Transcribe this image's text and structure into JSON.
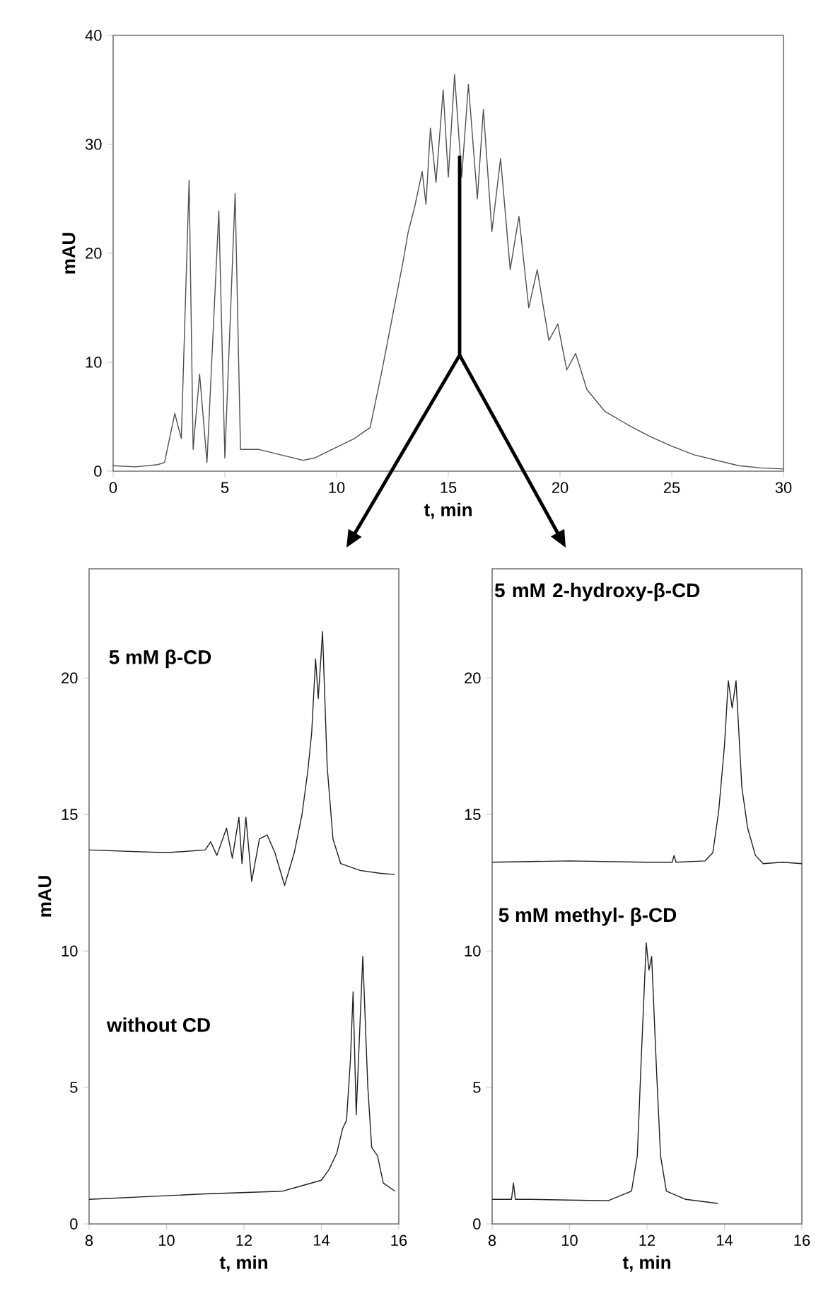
{
  "chart_data": [
    {
      "type": "line",
      "xlabel": "t, min",
      "ylabel": "mAU",
      "xlim": [
        0,
        30
      ],
      "ylim": [
        0,
        40
      ],
      "xticks": [
        0,
        5,
        10,
        15,
        20,
        25,
        30
      ],
      "yticks": [
        0,
        10,
        20,
        30,
        40
      ],
      "series": [
        {
          "color": "#505050",
          "x": [
            0,
            1,
            2,
            2.3,
            2.76,
            3.05,
            3.4,
            3.58,
            3.87,
            4.2,
            4.73,
            5.0,
            5.46,
            5.7,
            6.5,
            7.5,
            8.5,
            9.0,
            10.0,
            10.8,
            11.5,
            12.0,
            12.5,
            13.0,
            13.2,
            13.5,
            13.83,
            14.0,
            14.2,
            14.45,
            14.77,
            15.0,
            15.28,
            15.6,
            15.9,
            16.3,
            16.57,
            16.95,
            17.34,
            17.77,
            18.16,
            18.6,
            18.98,
            19.5,
            19.9,
            20.3,
            20.7,
            21.2,
            22,
            23,
            24,
            25,
            26,
            27,
            28,
            29,
            30
          ],
          "values": [
            0.5,
            0.4,
            0.6,
            0.8,
            5.3,
            3,
            26.7,
            2,
            8.9,
            0.8,
            23.9,
            1.2,
            25.5,
            2,
            2,
            1.5,
            1,
            1.2,
            2.2,
            3,
            4,
            8.9,
            14.2,
            19.5,
            21.9,
            24.3,
            27.5,
            24.5,
            31.5,
            26.5,
            35,
            27,
            36.4,
            27,
            35.5,
            25,
            33.2,
            22,
            28.7,
            18.5,
            23.4,
            15,
            18.5,
            12,
            13.5,
            9.3,
            10.8,
            7.5,
            5.5,
            4.3,
            3.2,
            2.3,
            1.5,
            1,
            0.5,
            0.3,
            0.2
          ]
        }
      ]
    },
    {
      "type": "line",
      "xlabel": "t, min",
      "ylabel": "mAU",
      "xlim": [
        8,
        16
      ],
      "ylim": [
        0,
        24
      ],
      "xticks": [
        8,
        10,
        12,
        14,
        16
      ],
      "yticks": [
        0,
        5,
        10,
        15,
        20
      ],
      "annotations": [
        "5 mM β-CD",
        "without CD"
      ],
      "series": [
        {
          "color": "#202020",
          "x": [
            8,
            9,
            10,
            11,
            11.14,
            11.3,
            11.55,
            11.7,
            11.87,
            11.95,
            12.05,
            12.2,
            12.4,
            12.6,
            12.8,
            13.05,
            13.3,
            13.5,
            13.65,
            13.75,
            13.85,
            13.92,
            14.03,
            14.15,
            14.3,
            14.5,
            15,
            15.5,
            15.9
          ],
          "values": [
            13.7,
            13.65,
            13.6,
            13.7,
            14.0,
            13.5,
            14.5,
            13.4,
            14.9,
            13.2,
            14.9,
            12.55,
            14.1,
            14.25,
            13.6,
            12.4,
            13.6,
            15.0,
            16.6,
            18,
            20.7,
            19.25,
            21.7,
            16.75,
            14.1,
            13.2,
            12.95,
            12.85,
            12.8
          ]
        },
        {
          "color": "#202020",
          "x": [
            8,
            11,
            13,
            13.5,
            14.0,
            14.2,
            14.4,
            14.55,
            14.65,
            14.75,
            14.82,
            14.9,
            15.07,
            15.2,
            15.3,
            15.45,
            15.6,
            15.9
          ],
          "values": [
            0.9,
            1.1,
            1.2,
            1.4,
            1.6,
            2.0,
            2.6,
            3.5,
            3.8,
            6,
            8.5,
            4.0,
            9.8,
            5,
            2.8,
            2.5,
            1.5,
            1.2
          ]
        }
      ]
    },
    {
      "type": "line",
      "xlabel": "t, min",
      "xlim": [
        8,
        16
      ],
      "ylim": [
        0,
        24
      ],
      "xticks": [
        8,
        10,
        12,
        14,
        16
      ],
      "yticks": [
        0,
        5,
        10,
        15,
        20
      ],
      "annotations": [
        "5 mM 2-hydroxy-β-CD",
        "5 mM methyl- β-CD"
      ],
      "series": [
        {
          "color": "#202020",
          "x": [
            8,
            10,
            12,
            12.65,
            12.7,
            12.75,
            13.5,
            13.7,
            13.85,
            14.0,
            14.1,
            14.2,
            14.3,
            14.45,
            14.6,
            14.8,
            15.0,
            15.5,
            16
          ],
          "values": [
            13.25,
            13.3,
            13.25,
            13.25,
            13.5,
            13.25,
            13.3,
            13.6,
            15.1,
            17.5,
            19.9,
            18.9,
            19.9,
            16,
            14.5,
            13.5,
            13.2,
            13.25,
            13.2
          ]
        },
        {
          "color": "#202020",
          "x": [
            8,
            8.5,
            8.55,
            8.6,
            9,
            11,
            11.6,
            11.75,
            11.85,
            11.98,
            12.05,
            12.12,
            12.25,
            12.35,
            12.5,
            13,
            13.83
          ],
          "values": [
            0.9,
            0.9,
            1.5,
            0.9,
            0.9,
            0.85,
            1.2,
            2.5,
            6,
            10.3,
            9.3,
            9.8,
            5.5,
            2.5,
            1.2,
            0.9,
            0.75
          ]
        }
      ]
    }
  ]
}
